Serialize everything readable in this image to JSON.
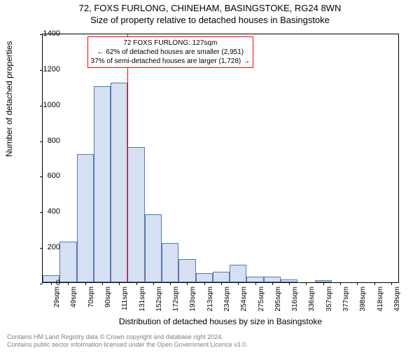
{
  "title_line1": "72, FOXS FURLONG, CHINEHAM, BASINGSTOKE, RG24 8WN",
  "title_line2": "Size of property relative to detached houses in Basingstoke",
  "ylabel": "Number of detached properties",
  "xlabel": "Distribution of detached houses by size in Basingstoke",
  "chart": {
    "type": "histogram",
    "ylim": [
      0,
      1400
    ],
    "ytick_step": 200,
    "yticks": [
      0,
      200,
      400,
      600,
      800,
      1000,
      1200,
      1400
    ],
    "categories": [
      "29sqm",
      "49sqm",
      "70sqm",
      "90sqm",
      "111sqm",
      "131sqm",
      "152sqm",
      "172sqm",
      "193sqm",
      "213sqm",
      "234sqm",
      "254sqm",
      "275sqm",
      "295sqm",
      "316sqm",
      "336sqm",
      "357sqm",
      "377sqm",
      "398sqm",
      "418sqm",
      "439sqm"
    ],
    "values": [
      40,
      230,
      720,
      1100,
      1120,
      760,
      380,
      220,
      130,
      50,
      60,
      100,
      30,
      30,
      15,
      0,
      10,
      0,
      0,
      0,
      0
    ],
    "bar_fill": "#d5e0f2",
    "bar_stroke": "#5a77b0",
    "bar_stroke_width": 1,
    "background_color": "#ffffff",
    "axis_color": "#000000",
    "vline": {
      "category_index": 4,
      "position": "right",
      "color": "#ff0000",
      "label_represents": "127sqm"
    },
    "annotation": {
      "lines": [
        "72 FOXS FURLONG: 127sqm",
        "← 62% of detached houses are smaller (2,951)",
        "37% of semi-detached houses are larger (1,728) →"
      ],
      "border_color": "#ff0000",
      "background_color": "#ffffff",
      "fontsize": 10,
      "x_center_category_index": 7,
      "y_value": 1300
    },
    "title_fontsize": 13,
    "label_fontsize": 12,
    "tick_fontsize": 10
  },
  "footer": {
    "line1": "Contains HM Land Registry data © Crown copyright and database right 2024.",
    "line2": "Contains public sector information licensed under the Open Government Licence v3.0.",
    "color": "#808080",
    "fontsize": 9
  }
}
